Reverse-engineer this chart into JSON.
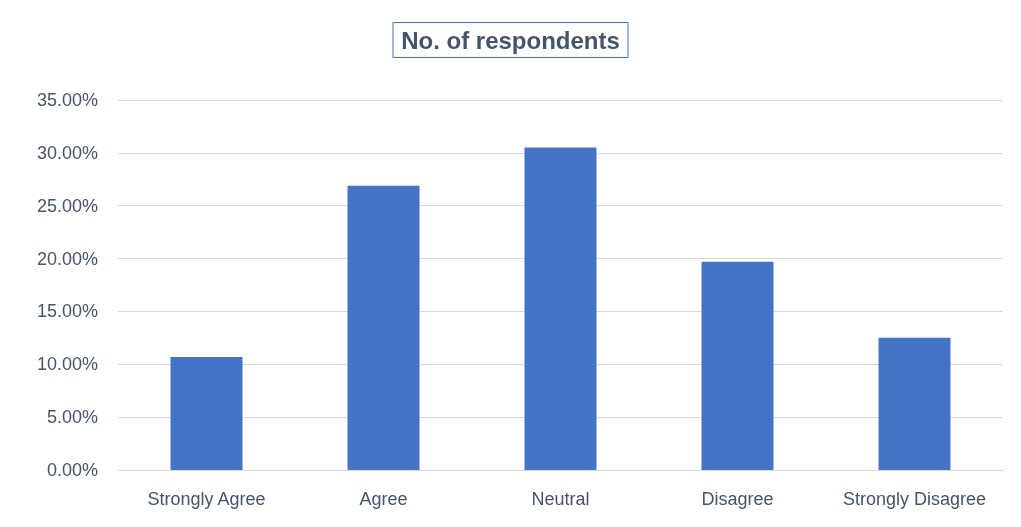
{
  "chart_data": {
    "type": "bar",
    "title": "No. of respondents",
    "categories": [
      "Strongly Agree",
      "Agree",
      "Neutral",
      "Disagree",
      "Strongly Disagree"
    ],
    "values": [
      10.7,
      26.9,
      30.5,
      19.7,
      12.5
    ],
    "color": "#4472c4",
    "ylim": [
      0,
      35
    ],
    "yticks": [
      {
        "value": 0,
        "label": "0.00%"
      },
      {
        "value": 5,
        "label": "5.00%"
      },
      {
        "value": 10,
        "label": "10.00%"
      },
      {
        "value": 15,
        "label": "15.00%"
      },
      {
        "value": 20,
        "label": "20.00%"
      },
      {
        "value": 25,
        "label": "25.00%"
      },
      {
        "value": 30,
        "label": "30.00%"
      },
      {
        "value": 35,
        "label": "35.00%"
      }
    ],
    "grid": true
  }
}
